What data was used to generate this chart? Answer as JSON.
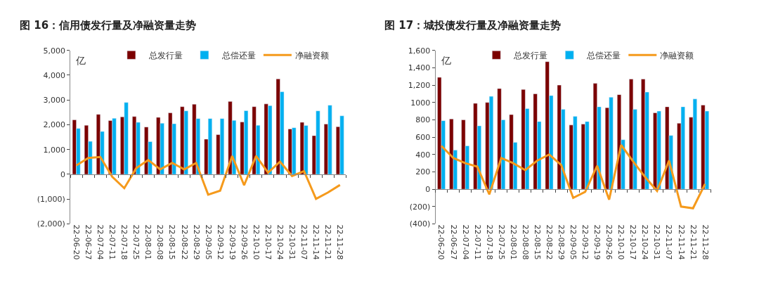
{
  "chart_data": [
    {
      "type": "bar",
      "title": "图 16：信用债发行量及净融资量走势",
      "ylabel": "亿",
      "categories": [
        "22-06-20",
        "22-06-27",
        "22-07-04",
        "22-07-11",
        "22-07-18",
        "22-07-25",
        "22-08-01",
        "22-08-08",
        "22-08-15",
        "22-08-22",
        "22-08-29",
        "22-09-05",
        "22-09-12",
        "22-09-19",
        "22-09-26",
        "22-10-10",
        "22-10-17",
        "22-10-24",
        "22-10-31",
        "22-11-07",
        "22-11-14",
        "22-11-21",
        "22-11-28"
      ],
      "series": [
        {
          "name": "总发行量",
          "color": "#7b0000",
          "values": [
            2200,
            1980,
            2420,
            2170,
            2320,
            2330,
            1910,
            2300,
            2480,
            2730,
            2830,
            1420,
            1600,
            2940,
            2110,
            2730,
            2840,
            3850,
            1830,
            2100,
            1560,
            2030,
            1920
          ]
        },
        {
          "name": "总偿还量",
          "color": "#00b0f0",
          "values": [
            1850,
            1330,
            1730,
            2260,
            2900,
            2100,
            1320,
            2060,
            2040,
            2560,
            2250,
            2250,
            2250,
            2180,
            2570,
            1980,
            2770,
            3330,
            1880,
            1970,
            2560,
            2790,
            2360
          ]
        },
        {
          "name": "净融资额",
          "type": "line",
          "color": "#f59a1c",
          "values": [
            360,
            660,
            700,
            -100,
            -560,
            250,
            580,
            200,
            460,
            200,
            460,
            -820,
            -660,
            740,
            -440,
            740,
            70,
            510,
            -70,
            130,
            -990,
            -730,
            -430
          ]
        }
      ],
      "ylim": [
        -2000,
        5000
      ],
      "yticks": [
        {
          "value": -2000,
          "label": "(2,000)"
        },
        {
          "value": -1000,
          "label": "(1,000)"
        },
        0,
        {
          "value": 1000,
          "label": "1,000"
        },
        {
          "value": 2000,
          "label": "2,000"
        },
        {
          "value": 3000,
          "label": "3,000"
        },
        {
          "value": 4000,
          "label": "4,000"
        },
        {
          "value": 5000,
          "label": "5,000"
        }
      ],
      "legend": "top",
      "marker": "none",
      "line_style": "solid"
    },
    {
      "type": "bar",
      "title": "图 17：城投债发行量及净融资量走势",
      "ylabel": "亿",
      "categories": [
        "22-06-20",
        "22-06-27",
        "22-07-04",
        "22-07-11",
        "22-07-18",
        "22-07-25",
        "22-08-01",
        "22-08-08",
        "22-08-15",
        "22-08-22",
        "22-08-29",
        "22-09-05",
        "22-09-12",
        "22-09-19",
        "22-09-26",
        "22-10-10",
        "22-10-17",
        "22-10-24",
        "22-10-31",
        "22-11-07",
        "22-11-14",
        "22-11-21",
        "22-11-28"
      ],
      "series": [
        {
          "name": "总发行量",
          "color": "#7b0000",
          "values": [
            1290,
            810,
            800,
            990,
            1000,
            1160,
            860,
            1150,
            1100,
            1470,
            1200,
            740,
            750,
            1220,
            940,
            1090,
            1270,
            1270,
            880,
            950,
            760,
            830,
            970
          ]
        },
        {
          "name": "总偿还量",
          "color": "#00b0f0",
          "values": [
            790,
            450,
            500,
            730,
            1070,
            800,
            540,
            930,
            780,
            1080,
            920,
            840,
            780,
            950,
            1060,
            570,
            920,
            1120,
            900,
            620,
            950,
            1040,
            900
          ]
        },
        {
          "name": "净融资额",
          "type": "line",
          "color": "#f59a1c",
          "values": [
            500,
            360,
            300,
            260,
            -60,
            360,
            300,
            220,
            330,
            400,
            280,
            -100,
            -30,
            270,
            -120,
            510,
            320,
            140,
            -20,
            330,
            -200,
            -220,
            60
          ]
        }
      ],
      "ylim": [
        -400,
        1600
      ],
      "yticks": [
        {
          "value": -400,
          "label": "(400)"
        },
        {
          "value": -200,
          "label": "(200)"
        },
        0,
        200,
        400,
        600,
        800,
        1000,
        {
          "value": 1200,
          "label": "1,200"
        },
        {
          "value": 1400,
          "label": "1,400"
        },
        {
          "value": 1600,
          "label": "1,600"
        }
      ],
      "legend": "top",
      "marker": "none",
      "line_style": "solid"
    }
  ]
}
